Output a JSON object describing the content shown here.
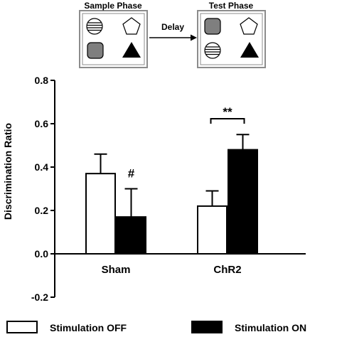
{
  "diagram": {
    "sample_phase_label": "Sample Phase",
    "test_phase_label": "Test Phase",
    "delay_label": "Delay",
    "sample_objects": [
      "striped-circle",
      "pentagon",
      "rounded-square",
      "triangle"
    ],
    "test_objects": [
      "rounded-square",
      "pentagon",
      "striped-circle",
      "triangle"
    ]
  },
  "chart_data": {
    "type": "bar",
    "categories": [
      "Sham",
      "ChR2"
    ],
    "series": [
      {
        "name": "Stimulation OFF",
        "values": [
          0.37,
          0.22
        ],
        "errors": [
          0.09,
          0.07
        ],
        "color": "#ffffff"
      },
      {
        "name": "Stimulation ON",
        "values": [
          0.17,
          0.48
        ],
        "errors": [
          0.13,
          0.07
        ],
        "color": "#000000"
      }
    ],
    "ylabel": "Discrimination Ratio",
    "xlabel": "",
    "ylim": [
      -0.2,
      0.8
    ],
    "yticks": [
      -0.2,
      0.0,
      0.2,
      0.4,
      0.6,
      0.8
    ],
    "ytick_labels": [
      "-0.2",
      "0.0",
      "0.2",
      "0.4",
      "0.6",
      "0.8"
    ],
    "annotations": [
      {
        "text": "#",
        "category": "Sham",
        "series": "Stimulation ON"
      },
      {
        "text": "**",
        "category": "ChR2",
        "bracket": true
      }
    ],
    "legend": {
      "placement": "bottom"
    },
    "grid": false
  }
}
